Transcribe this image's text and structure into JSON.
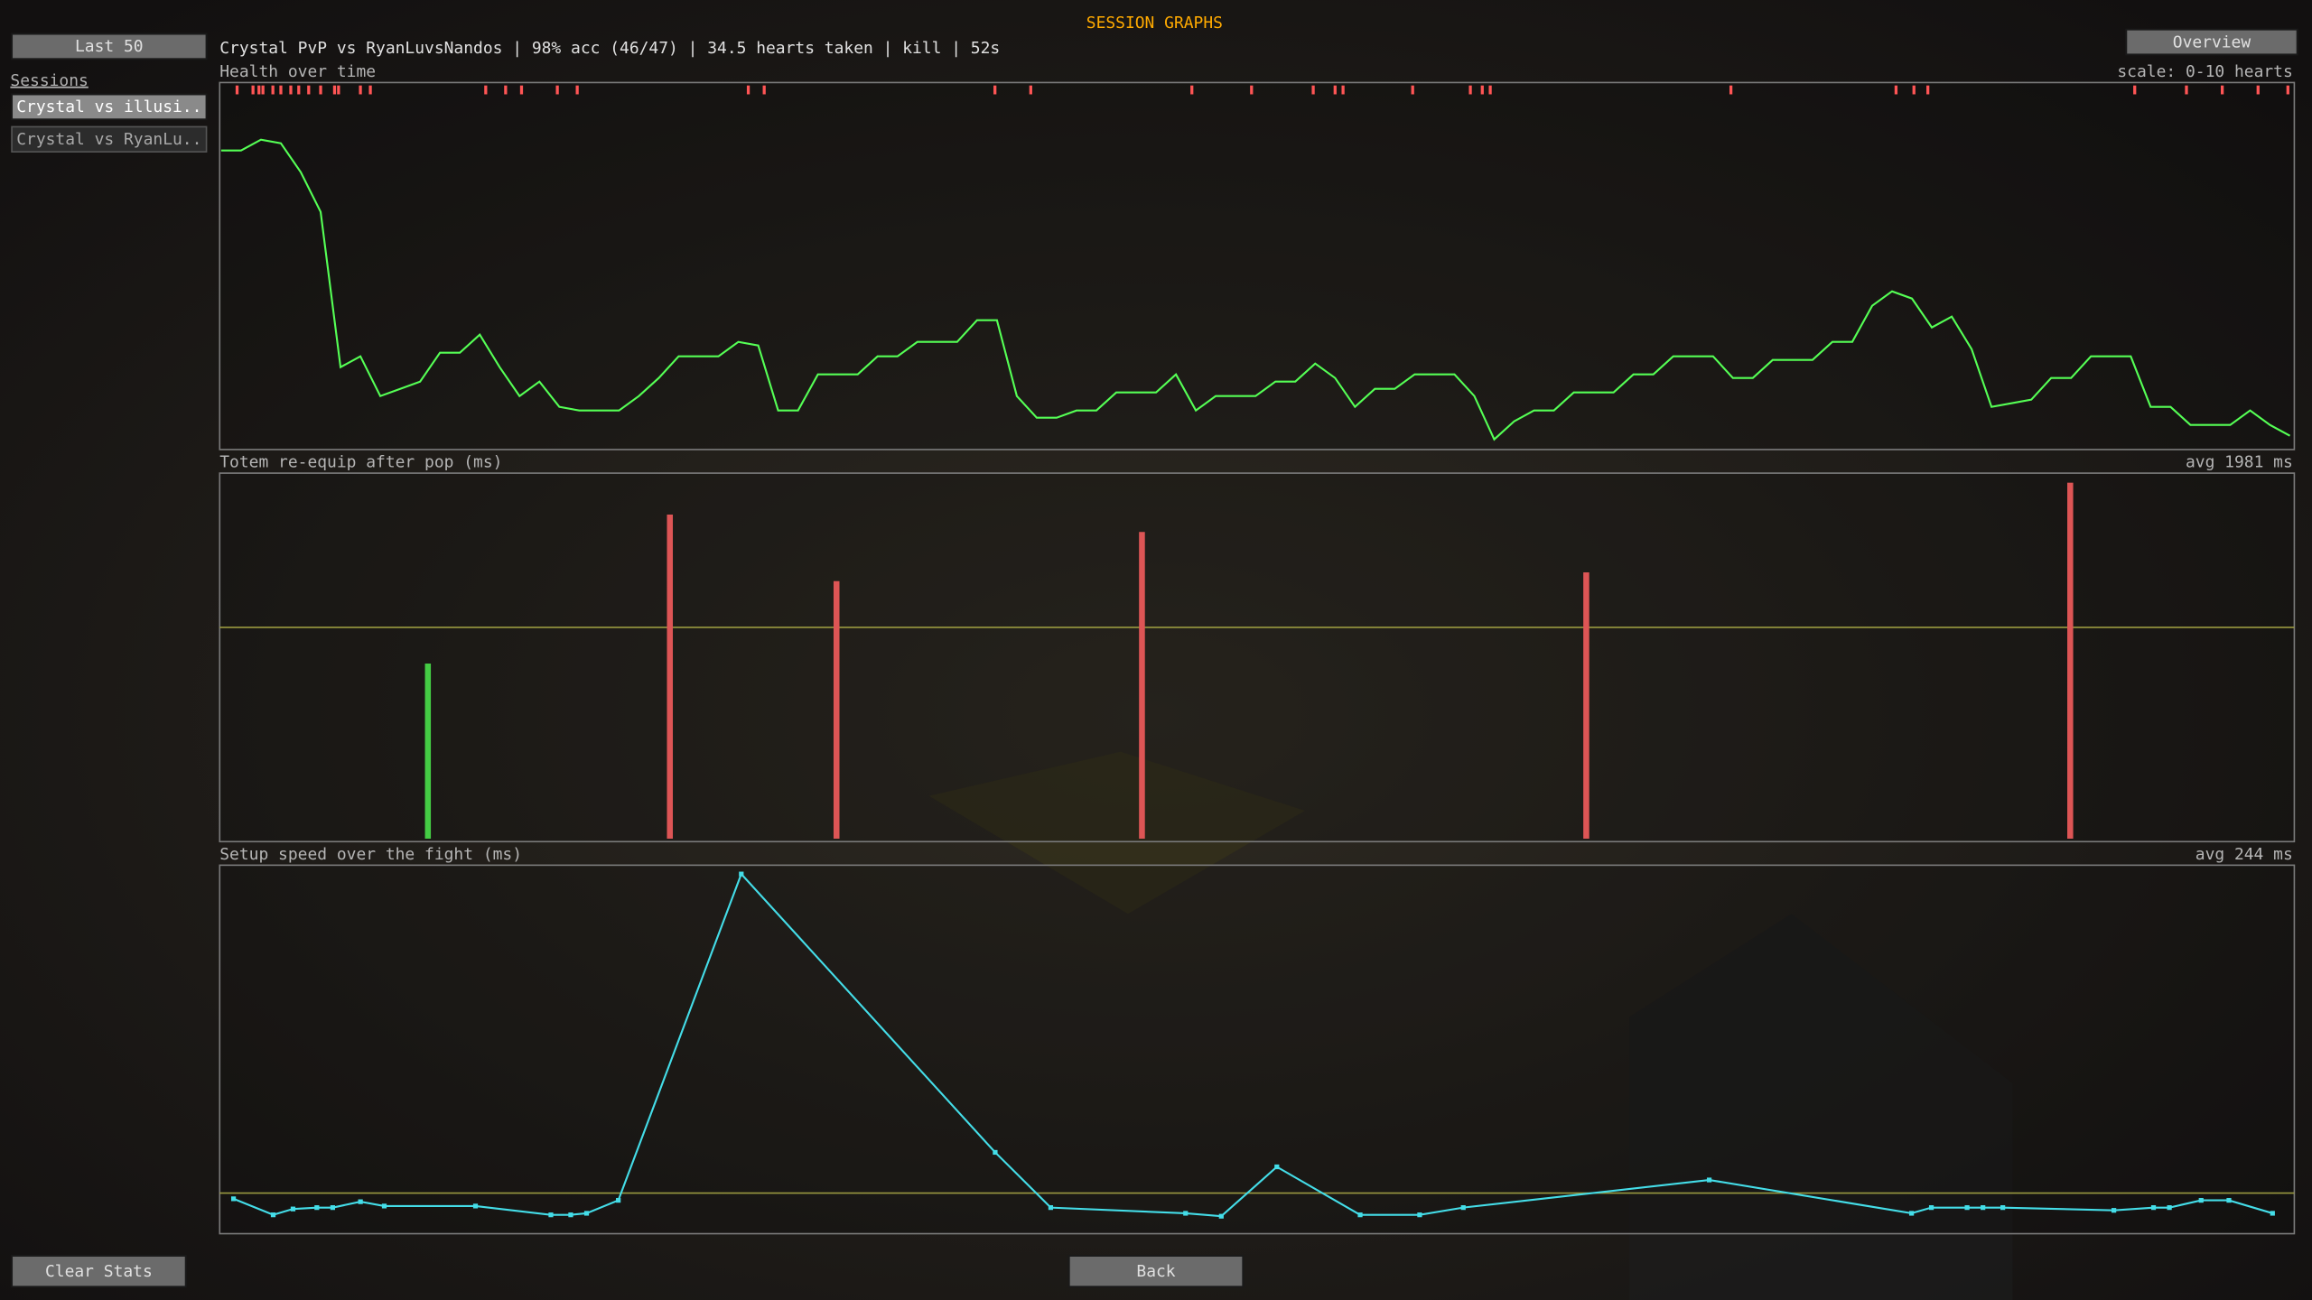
{
  "title": "SESSION GRAPHS",
  "buttons": {
    "last50": "Last 50",
    "overview": "Overview",
    "clear": "Clear Stats",
    "back": "Back"
  },
  "sessions": {
    "label": "Sessions",
    "items": [
      "Crystal vs illusi..",
      "Crystal vs RyanLu.."
    ]
  },
  "summary": "Crystal PvP vs RyanLuvsNandos | 98% acc (46/47) | 34.5 hearts taken | kill | 52s",
  "chart_data": [
    {
      "type": "line",
      "title": "Health over time",
      "note": "scale: 0-10 hearts",
      "color": "#55ff55",
      "values": [
        8.2,
        8.2,
        8.5,
        8.4,
        7.6,
        6.5,
        2.2,
        2.5,
        1.4,
        1.6,
        1.8,
        2.6,
        2.6,
        3.1,
        2.2,
        1.4,
        1.8,
        1.1,
        1.0,
        1.0,
        1.0,
        1.4,
        1.9,
        2.5,
        2.5,
        2.5,
        2.9,
        2.8,
        1.0,
        1.0,
        2.0,
        2.0,
        2.0,
        2.5,
        2.5,
        2.9,
        2.9,
        2.9,
        3.5,
        3.5,
        1.4,
        0.8,
        0.8,
        1.0,
        1.0,
        1.5,
        1.5,
        1.5,
        2.0,
        1.0,
        1.4,
        1.4,
        1.4,
        1.8,
        1.8,
        2.3,
        1.9,
        1.1,
        1.6,
        1.6,
        2.0,
        2.0,
        2.0,
        1.4,
        0.2,
        0.7,
        1.0,
        1.0,
        1.5,
        1.5,
        1.5,
        2.0,
        2.0,
        2.5,
        2.5,
        2.5,
        1.9,
        1.9,
        2.4,
        2.4,
        2.4,
        2.9,
        2.9,
        3.9,
        4.3,
        4.1,
        3.3,
        3.6,
        2.7,
        1.1,
        1.2,
        1.3,
        1.9,
        1.9,
        2.5,
        2.5,
        2.5,
        1.1,
        1.1,
        0.6,
        0.6,
        0.6,
        1.0,
        0.6,
        0.3
      ],
      "ylim": [
        0,
        10
      ],
      "hits": [
        0.8,
        1.6,
        1.9,
        2.1,
        2.6,
        3.0,
        3.5,
        3.9,
        4.4,
        5.0,
        5.7,
        5.9,
        7.0,
        7.5,
        13.3,
        14.3,
        15.1,
        16.9,
        17.9,
        26.5,
        27.3,
        38.9,
        40.7,
        48.8,
        51.8,
        54.9,
        56.0,
        56.4,
        59.9,
        62.8,
        63.4,
        63.8,
        75.9,
        84.2,
        85.1,
        85.8,
        96.2,
        98.8,
        100.6,
        102.4,
        103.9
      ],
      "hit_color": "#ff5555"
    },
    {
      "type": "bar",
      "title": "Totem re-equip after pop (ms)",
      "note": "avg 1981 ms",
      "avg": 1981,
      "avg_color": "#9a9a40",
      "x": [
        5.1,
        11.2,
        15.4,
        23.1,
        34.3,
        46.5
      ],
      "values": [
        1642,
        3039,
        2415,
        2876,
        2497,
        3338
      ],
      "colors": [
        "#44cc44",
        "#dd5555",
        "#dd5555",
        "#dd5555",
        "#dd5555",
        "#dd5555"
      ],
      "xlim": [
        0,
        52
      ],
      "ylim": [
        0,
        3400
      ]
    },
    {
      "type": "line",
      "title": "Setup speed over the fight (ms)",
      "note": "avg 244 ms",
      "avg": 244,
      "avg_color": "#9a9a40",
      "color": "#44dde8",
      "x": [
        0.2,
        1.2,
        1.7,
        2.3,
        2.7,
        3.4,
        4.0,
        6.3,
        8.2,
        8.7,
        9.1,
        9.9,
        13.0,
        19.4,
        20.8,
        24.2,
        25.1,
        26.5,
        28.6,
        30.1,
        31.2,
        37.4,
        42.5,
        43.0,
        43.9,
        44.3,
        44.8,
        47.6,
        48.6,
        49.0,
        49.8,
        50.5,
        51.6
      ],
      "values": [
        207,
        103,
        141,
        150,
        150,
        188,
        160,
        160,
        103,
        103,
        113,
        197,
        2312,
        508,
        150,
        113,
        94,
        414,
        103,
        103,
        150,
        329,
        113,
        150,
        150,
        150,
        150,
        132,
        150,
        150,
        197,
        197,
        113
      ],
      "xlim": [
        0,
        52
      ],
      "ylim": [
        0,
        2350
      ]
    }
  ]
}
